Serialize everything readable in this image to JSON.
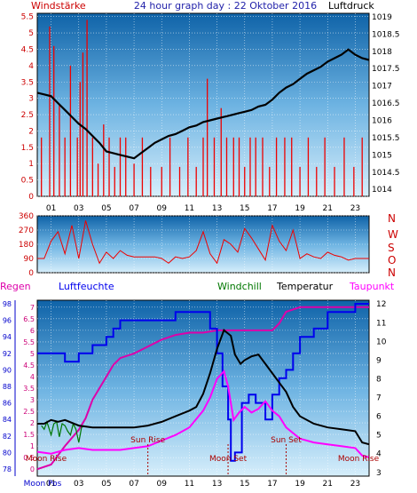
{
  "header": {
    "left_label": "Windstärke",
    "title": "24 hour graph day : 22 Oktober 2016",
    "right_label": "Luftdruck"
  },
  "colors": {
    "panel_top": "#1a6fb0",
    "panel_bottom": "#cfe8f7",
    "wind": "#ee0000",
    "pressure": "#000000",
    "humidity": "#0000ee",
    "windchill": "#007700",
    "temperature": "#000000",
    "dewpoint": "#ff00ff",
    "rain": "#dd00aa"
  },
  "chart_data": [
    {
      "type": "line",
      "id": "wind-pressure",
      "xlabel_ticks": [
        "01",
        "03",
        "05",
        "07",
        "09",
        "11",
        "13",
        "15",
        "17",
        "19",
        "21",
        "23"
      ],
      "y_left": {
        "label": "Windstärke",
        "ticks": [
          "0",
          "0.5",
          "1",
          "1.5",
          "2",
          "2.5",
          "3",
          "3.5",
          "4",
          "4.5",
          "5",
          "5.5"
        ],
        "ylim": [
          0,
          5.6
        ]
      },
      "y_right": {
        "label": "Luftdruck",
        "ticks": [
          "1014",
          "1014.5",
          "1015",
          "1015.5",
          "1016",
          "1016.5",
          "1017",
          "1017.5",
          "1018",
          "1018.5",
          "1019"
        ],
        "ylim": [
          1013.8,
          1019.1
        ]
      },
      "series": [
        {
          "name": "Luftdruck",
          "axis": "right",
          "x": [
            0,
            0.5,
            1,
            1.5,
            2,
            2.5,
            3,
            3.5,
            4,
            4.5,
            5,
            5.5,
            6,
            6.5,
            7,
            7.5,
            8,
            8.5,
            9,
            9.5,
            10,
            10.5,
            11,
            11.5,
            12,
            12.5,
            13,
            13.5,
            14,
            14.5,
            15,
            15.5,
            16,
            16.5,
            17,
            17.5,
            18,
            18.5,
            19,
            19.5,
            20,
            20.5,
            21,
            21.5,
            22,
            22.5,
            23,
            23.5,
            24
          ],
          "values": [
            1016.8,
            1016.75,
            1016.7,
            1016.5,
            1016.3,
            1016.1,
            1015.9,
            1015.75,
            1015.55,
            1015.35,
            1015.1,
            1015.05,
            1015.0,
            1014.95,
            1014.9,
            1015.05,
            1015.2,
            1015.35,
            1015.45,
            1015.55,
            1015.6,
            1015.7,
            1015.8,
            1015.85,
            1015.95,
            1016.0,
            1016.05,
            1016.1,
            1016.15,
            1016.2,
            1016.25,
            1016.3,
            1016.4,
            1016.45,
            1016.6,
            1016.8,
            1016.95,
            1017.05,
            1017.2,
            1017.35,
            1017.45,
            1017.55,
            1017.7,
            1017.8,
            1017.9,
            1018.05,
            1017.9,
            1017.8,
            1017.75
          ]
        },
        {
          "name": "Windstärke",
          "axis": "left",
          "x": [
            0.3,
            0.9,
            1.2,
            1.6,
            2.0,
            2.4,
            2.9,
            3.1,
            3.3,
            3.6,
            4.0,
            4.4,
            4.8,
            5.2,
            5.6,
            6.0,
            6.4,
            7.0,
            7.6,
            8.2,
            9.0,
            9.6,
            10.3,
            10.9,
            11.5,
            12.0,
            12.3,
            12.8,
            13.3,
            13.7,
            14.2,
            14.6,
            15.0,
            15.4,
            15.8,
            16.3,
            16.8,
            17.3,
            17.9,
            18.4,
            19.0,
            19.6,
            20.2,
            20.8,
            21.5,
            22.2,
            22.9,
            23.5
          ],
          "values": [
            1.8,
            5.2,
            4.6,
            2.8,
            1.8,
            4.0,
            1.8,
            3.5,
            4.4,
            5.4,
            1.8,
            1.0,
            2.2,
            1.8,
            0.9,
            1.8,
            1.8,
            1.0,
            1.8,
            0.9,
            0.9,
            1.8,
            0.9,
            1.8,
            0.9,
            1.8,
            3.6,
            1.8,
            2.7,
            1.8,
            1.8,
            1.8,
            0.9,
            1.8,
            1.8,
            1.8,
            0.9,
            1.8,
            1.8,
            1.8,
            0.9,
            1.8,
            0.9,
            1.8,
            0.9,
            1.8,
            0.9,
            1.8
          ]
        }
      ]
    },
    {
      "type": "line",
      "id": "wind-direction",
      "y_left": {
        "ticks": [
          "0",
          "90",
          "180",
          "270",
          "360"
        ],
        "ylim": [
          0,
          360
        ]
      },
      "y_right": {
        "ticks": [
          "N",
          "W",
          "S",
          "O",
          "N"
        ]
      },
      "series": [
        {
          "name": "Windrichtung",
          "x": [
            0,
            0.5,
            1,
            1.5,
            2,
            2.5,
            3,
            3.5,
            4,
            4.5,
            5,
            5.5,
            6,
            6.5,
            7,
            7.5,
            8,
            8.5,
            9,
            9.5,
            10,
            10.5,
            11,
            11.5,
            12,
            12.5,
            13,
            13.5,
            14,
            14.5,
            15,
            15.5,
            16,
            16.5,
            17,
            17.5,
            18,
            18.5,
            19,
            19.5,
            20,
            20.5,
            21,
            21.5,
            22,
            22.5,
            23,
            23.5,
            24
          ],
          "values": [
            90,
            90,
            200,
            260,
            120,
            300,
            90,
            330,
            180,
            60,
            130,
            90,
            140,
            110,
            100,
            100,
            100,
            100,
            90,
            60,
            100,
            90,
            100,
            140,
            260,
            120,
            60,
            210,
            180,
            130,
            280,
            220,
            150,
            80,
            300,
            200,
            140,
            270,
            90,
            120,
            100,
            90,
            130,
            110,
            100,
            80,
            90,
            90,
            90
          ]
        }
      ]
    },
    {
      "type": "line",
      "id": "temp-humidity",
      "legend": [
        "Regen",
        "Luftfeuchte",
        "Windchill",
        "Temperatur",
        "Taupunkt"
      ],
      "y_left_rain": {
        "label": "Regen",
        "ticks": [
          "0",
          "0.5",
          "1",
          "1.5",
          "2",
          "2.5",
          "3",
          "3.5",
          "4",
          "4.5",
          "5",
          "5.5",
          "6",
          "6.5",
          "7"
        ],
        "ylim": [
          -0.3,
          7.3
        ]
      },
      "y_left_humidity": {
        "label": "Luftfeuchte",
        "ticks": [
          "78",
          "80",
          "82",
          "84",
          "86",
          "88",
          "90",
          "92",
          "94",
          "96",
          "98"
        ],
        "ylim": [
          78,
          98
        ]
      },
      "y_right_temp": {
        "label": "Temperatur",
        "ticks": [
          "3",
          "4",
          "5",
          "6",
          "7",
          "8",
          "9",
          "10",
          "11",
          "12"
        ],
        "ylim": [
          2.8,
          12.2
        ]
      },
      "xlabel_ticks": [
        "01",
        "03",
        "05",
        "07",
        "09",
        "11",
        "13",
        "15",
        "17",
        "19",
        "21",
        "23"
      ],
      "annotations": [
        "Sun Rise",
        "Sun Set",
        "Moon Rise",
        "Moon Set",
        "Moon Rise",
        "Moon Pos"
      ],
      "series": [
        {
          "name": "Luftfeuchte",
          "x": [
            0,
            1,
            2,
            2.5,
            3,
            4,
            5,
            5.5,
            6,
            7,
            8,
            9,
            10,
            10.5,
            11,
            12,
            12.5,
            13,
            13.4,
            13.8,
            14.0,
            14.3,
            14.8,
            15.3,
            15.8,
            16.5,
            17,
            17.5,
            18,
            18.5,
            19,
            20,
            21,
            22,
            23,
            24
          ],
          "values": [
            92,
            92,
            91,
            91,
            92,
            93,
            94,
            95,
            96,
            96,
            96,
            96,
            97,
            97,
            97,
            97,
            95,
            92,
            88,
            84,
            79,
            80,
            86,
            87,
            86,
            84,
            87,
            89,
            90,
            92,
            94,
            95,
            97,
            97,
            98,
            98
          ]
        },
        {
          "name": "Temperatur",
          "x": [
            0,
            0.5,
            1,
            1.5,
            2,
            3,
            4,
            5,
            6,
            7,
            8,
            9,
            10,
            11,
            11.5,
            12,
            12.5,
            13,
            13.5,
            14,
            14.3,
            14.7,
            15,
            15.5,
            16,
            16.5,
            17,
            17.5,
            18,
            18.5,
            19,
            20,
            21,
            22,
            23,
            23.5,
            24
          ],
          "values": [
            5.6,
            5.6,
            5.8,
            5.7,
            5.8,
            5.5,
            5.4,
            5.4,
            5.4,
            5.4,
            5.5,
            5.7,
            6.0,
            6.3,
            6.5,
            7.2,
            8.3,
            9.6,
            10.6,
            10.3,
            9.3,
            8.8,
            9.0,
            9.2,
            9.3,
            8.8,
            8.3,
            7.8,
            7.3,
            6.5,
            6.0,
            5.6,
            5.4,
            5.3,
            5.2,
            4.6,
            4.5
          ]
        },
        {
          "name": "Taupunkt",
          "x": [
            0,
            1,
            2,
            3,
            4,
            5,
            6,
            7,
            8,
            9,
            10,
            11,
            12,
            12.5,
            13,
            13.5,
            13.8,
            14.2,
            14.6,
            15,
            15.5,
            16,
            16.5,
            17,
            17.5,
            18,
            19,
            20,
            21,
            22,
            23,
            23.5,
            24
          ],
          "values": [
            4.1,
            4.0,
            4.2,
            4.3,
            4.2,
            4.2,
            4.2,
            4.3,
            4.4,
            4.7,
            5.0,
            5.4,
            6.3,
            7.0,
            8.0,
            8.4,
            7.6,
            5.8,
            6.2,
            6.5,
            6.2,
            6.4,
            6.8,
            6.3,
            6.0,
            5.4,
            4.8,
            4.6,
            4.5,
            4.4,
            4.3,
            3.9,
            3.8
          ]
        },
        {
          "name": "Windchill",
          "x": [
            0.3,
            0.5,
            0.7,
            1.0,
            1.2,
            1.4,
            1.6,
            1.8,
            2.0,
            2.2,
            2.4,
            2.6,
            2.8,
            3.0,
            3.2,
            3.4
          ],
          "values": [
            5.5,
            5.3,
            5.7,
            5.0,
            5.6,
            5.7,
            4.9,
            5.6,
            5.5,
            5.2,
            5.0,
            5.6,
            5.3,
            4.6,
            5.4,
            5.5
          ]
        },
        {
          "name": "Regen",
          "x": [
            0,
            1,
            2,
            3,
            3.5,
            4,
            4.5,
            5,
            5.5,
            6,
            7,
            8,
            9,
            10,
            11,
            12,
            13,
            14,
            15,
            16,
            17,
            17.5,
            18,
            19,
            20,
            21,
            22,
            23,
            24
          ],
          "values": [
            0,
            0.2,
            1.0,
            1.7,
            2.2,
            3.0,
            3.5,
            4.0,
            4.5,
            4.8,
            5.0,
            5.3,
            5.6,
            5.8,
            5.9,
            5.9,
            6.0,
            6.0,
            6.0,
            6.0,
            6.0,
            6.3,
            6.8,
            7.0,
            7.0,
            7.0,
            7.0,
            7.0,
            7.0
          ]
        }
      ]
    }
  ]
}
